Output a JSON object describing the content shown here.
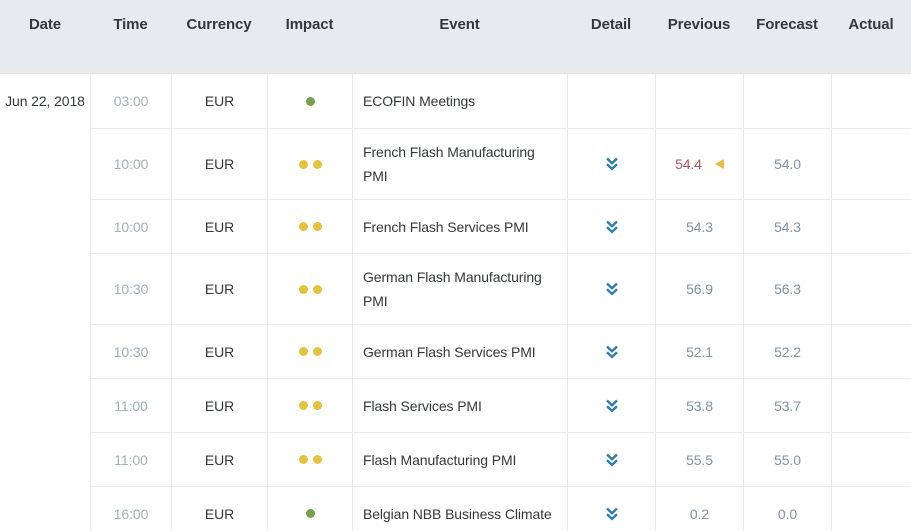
{
  "columns": [
    {
      "id": "date",
      "label": "Date"
    },
    {
      "id": "time",
      "label": "Time"
    },
    {
      "id": "currency",
      "label": "Currency"
    },
    {
      "id": "impact",
      "label": "Impact"
    },
    {
      "id": "event",
      "label": "Event"
    },
    {
      "id": "detail",
      "label": "Detail"
    },
    {
      "id": "previous",
      "label": "Previous"
    },
    {
      "id": "forecast",
      "label": "Forecast"
    },
    {
      "id": "actual",
      "label": "Actual"
    }
  ],
  "date_label": "Jun 22, 2018",
  "icons": {
    "detail": "double-chevron-down-icon",
    "previous_marker": "left-triangle-icon"
  },
  "colors": {
    "header_bg": "#e7ebed",
    "detail_chevron": "#2e7cac",
    "impact_low": "#74a24c",
    "impact_medium": "#e3c23f",
    "value_neutral": "#7f95a8",
    "value_worse": "#a85858",
    "marker_yellow": "#ecb84a",
    "time_text": "#9fb0bc",
    "text_dark": "#33383b"
  },
  "rows": [
    {
      "show_date": true,
      "time": "03:00",
      "currency": "EUR",
      "impact": {
        "level": "low",
        "count": 1
      },
      "event": "ECOFIN Meetings",
      "has_detail": false,
      "previous": {
        "value": "",
        "status": "neutral",
        "marker": false
      },
      "forecast": "",
      "actual": ""
    },
    {
      "show_date": false,
      "time": "10:00",
      "currency": "EUR",
      "impact": {
        "level": "medium",
        "count": 2
      },
      "event": "French Flash Manufacturing PMI",
      "has_detail": true,
      "previous": {
        "value": "54.4",
        "status": "worse",
        "marker": true
      },
      "forecast": "54.0",
      "actual": ""
    },
    {
      "show_date": false,
      "time": "10:00",
      "currency": "EUR",
      "impact": {
        "level": "medium",
        "count": 2
      },
      "event": "French Flash Services PMI",
      "has_detail": true,
      "previous": {
        "value": "54.3",
        "status": "neutral",
        "marker": false
      },
      "forecast": "54.3",
      "actual": ""
    },
    {
      "show_date": false,
      "time": "10:30",
      "currency": "EUR",
      "impact": {
        "level": "medium",
        "count": 2
      },
      "event": "German Flash Manufacturing PMI",
      "has_detail": true,
      "previous": {
        "value": "56.9",
        "status": "neutral",
        "marker": false
      },
      "forecast": "56.3",
      "actual": ""
    },
    {
      "show_date": false,
      "time": "10:30",
      "currency": "EUR",
      "impact": {
        "level": "medium",
        "count": 2
      },
      "event": "German Flash Services PMI",
      "has_detail": true,
      "previous": {
        "value": "52.1",
        "status": "neutral",
        "marker": false
      },
      "forecast": "52.2",
      "actual": ""
    },
    {
      "show_date": false,
      "time": "11:00",
      "currency": "EUR",
      "impact": {
        "level": "medium",
        "count": 2
      },
      "event": "Flash Services PMI",
      "has_detail": true,
      "previous": {
        "value": "53.8",
        "status": "neutral",
        "marker": false
      },
      "forecast": "53.7",
      "actual": ""
    },
    {
      "show_date": false,
      "time": "11:00",
      "currency": "EUR",
      "impact": {
        "level": "medium",
        "count": 2
      },
      "event": "Flash Manufacturing PMI",
      "has_detail": true,
      "previous": {
        "value": "55.5",
        "status": "neutral",
        "marker": false
      },
      "forecast": "55.0",
      "actual": ""
    },
    {
      "show_date": false,
      "time": "16:00",
      "currency": "EUR",
      "impact": {
        "level": "low",
        "count": 1
      },
      "event": "Belgian NBB Business Climate",
      "has_detail": true,
      "previous": {
        "value": "0.2",
        "status": "neutral",
        "marker": false
      },
      "forecast": "0.0",
      "actual": ""
    }
  ]
}
